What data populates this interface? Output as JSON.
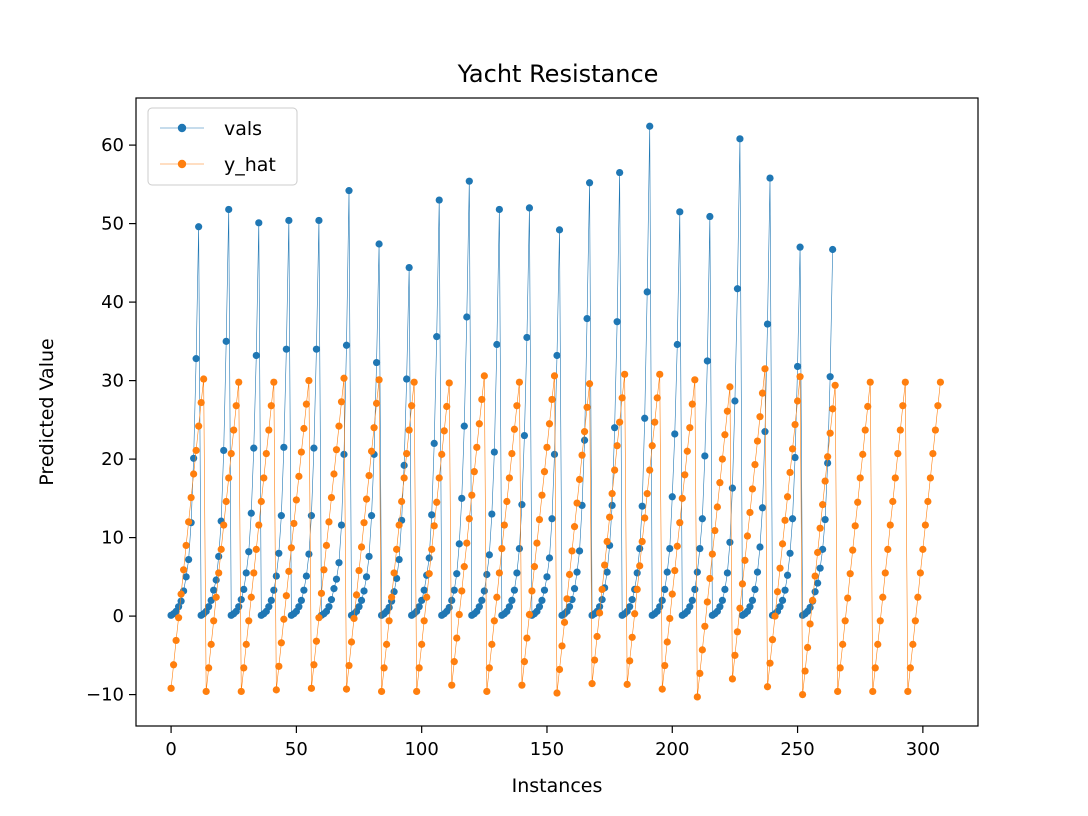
{
  "chart_data": {
    "type": "line",
    "title": "Yacht Resistance",
    "xlabel": "Instances",
    "ylabel": "Predicted Value",
    "xlim": [
      -14,
      322
    ],
    "ylim": [
      -14,
      66
    ],
    "xticks": [
      0,
      50,
      100,
      150,
      200,
      250,
      300
    ],
    "yticks": [
      -10,
      0,
      10,
      20,
      30,
      40,
      50,
      60
    ],
    "grid": false,
    "legend": "top-left",
    "x_start": 0,
    "x_step": 1,
    "series": [
      {
        "name": "vals",
        "color": "#1f77b4",
        "marker": "circle",
        "values": [
          0.1,
          0.3,
          0.6,
          1.2,
          1.9,
          3.2,
          5.0,
          7.2,
          11.9,
          20.1,
          32.8,
          49.6,
          0.1,
          0.3,
          0.6,
          1.2,
          2.0,
          3.3,
          4.6,
          7.6,
          12.1,
          21.1,
          35.0,
          51.8,
          0.1,
          0.3,
          0.6,
          1.2,
          2.1,
          3.4,
          5.5,
          8.2,
          13.1,
          21.4,
          33.2,
          50.1,
          0.1,
          0.3,
          0.6,
          1.2,
          2.0,
          3.3,
          5.1,
          8.0,
          12.8,
          21.5,
          34.0,
          50.4,
          0.1,
          0.3,
          0.6,
          1.2,
          2.0,
          3.3,
          5.1,
          7.9,
          12.8,
          21.4,
          34.0,
          50.4,
          0.1,
          0.3,
          0.6,
          1.2,
          2.1,
          3.5,
          4.7,
          6.8,
          11.6,
          20.6,
          34.5,
          54.2,
          0.1,
          0.3,
          0.6,
          1.2,
          2.0,
          3.2,
          5.0,
          7.6,
          12.8,
          20.6,
          32.3,
          47.4,
          0.1,
          0.3,
          0.6,
          1.1,
          1.9,
          3.1,
          4.8,
          7.2,
          12.2,
          19.2,
          30.2,
          44.4,
          0.1,
          0.3,
          0.6,
          1.2,
          2.0,
          3.3,
          5.2,
          7.4,
          12.9,
          22.0,
          35.6,
          53.0,
          0.1,
          0.3,
          0.6,
          1.1,
          2.0,
          3.3,
          5.4,
          9.2,
          15.0,
          24.2,
          38.1,
          55.4,
          0.1,
          0.3,
          0.6,
          1.2,
          2.0,
          3.2,
          5.3,
          7.8,
          13.0,
          20.9,
          34.6,
          51.8,
          0.1,
          0.3,
          0.6,
          1.2,
          2.0,
          3.3,
          5.5,
          8.6,
          14.2,
          23.0,
          35.5,
          52.0,
          0.1,
          0.3,
          0.6,
          1.2,
          2.0,
          3.3,
          5.0,
          7.4,
          12.4,
          20.6,
          33.2,
          49.2,
          0.1,
          0.3,
          0.6,
          1.2,
          2.1,
          3.5,
          5.6,
          8.3,
          14.1,
          22.4,
          37.9,
          55.2,
          0.1,
          0.3,
          0.6,
          1.2,
          2.1,
          3.6,
          5.6,
          9.0,
          14.1,
          24.0,
          37.5,
          56.5,
          0.1,
          0.3,
          0.6,
          1.2,
          2.1,
          3.4,
          5.5,
          8.6,
          14.0,
          25.2,
          41.3,
          62.4,
          0.1,
          0.3,
          0.6,
          1.2,
          2.0,
          3.4,
          5.6,
          8.6,
          15.2,
          23.2,
          34.6,
          51.5,
          0.1,
          0.3,
          0.6,
          1.2,
          2.0,
          3.4,
          5.6,
          8.6,
          12.4,
          20.4,
          32.5,
          50.9,
          0.1,
          0.3,
          0.6,
          1.2,
          2.0,
          3.4,
          5.5,
          9.4,
          16.3,
          27.4,
          41.7,
          60.8,
          0.1,
          0.3,
          0.6,
          1.2,
          2.0,
          3.4,
          5.6,
          8.8,
          13.8,
          23.5,
          37.2,
          55.8,
          0.1,
          0.3,
          0.6,
          1.2,
          2.0,
          3.3,
          5.2,
          8.0,
          12.4,
          20.2,
          31.8,
          47.0,
          0.1,
          0.3,
          0.6,
          1.1,
          1.9,
          3.1,
          4.2,
          6.1,
          8.5,
          12.3,
          19.5,
          30.5,
          46.7
        ]
      },
      {
        "name": "y_hat",
        "color": "#ff7f0e",
        "marker": "circle",
        "values": [
          -9.2,
          -6.2,
          -3.1,
          -0.2,
          2.8,
          5.9,
          9.0,
          12.0,
          15.1,
          18.1,
          21.1,
          24.2,
          27.2,
          30.2,
          -9.6,
          -6.6,
          -3.6,
          -0.6,
          2.4,
          5.5,
          8.5,
          11.6,
          14.6,
          17.6,
          20.7,
          23.7,
          26.8,
          29.8,
          -9.6,
          -6.6,
          -3.6,
          -0.6,
          2.4,
          5.5,
          8.5,
          11.6,
          14.6,
          17.6,
          20.7,
          23.7,
          26.8,
          29.8,
          -9.4,
          -6.4,
          -3.4,
          -0.4,
          2.6,
          5.7,
          8.7,
          11.8,
          14.8,
          17.8,
          20.9,
          23.9,
          27.0,
          30.0,
          -9.2,
          -6.2,
          -3.2,
          -0.2,
          2.9,
          5.9,
          9.0,
          12.0,
          15.1,
          18.1,
          21.2,
          24.2,
          27.3,
          30.3,
          -9.3,
          -6.3,
          -3.3,
          -0.3,
          2.7,
          5.8,
          8.8,
          11.9,
          14.9,
          17.9,
          21.0,
          24.0,
          27.1,
          30.1,
          -9.6,
          -6.6,
          -3.6,
          -0.6,
          2.4,
          5.5,
          8.5,
          11.6,
          14.6,
          17.6,
          20.7,
          23.7,
          26.8,
          29.8,
          -9.6,
          -6.6,
          -3.6,
          -0.6,
          2.4,
          5.4,
          8.5,
          11.5,
          14.5,
          17.6,
          20.6,
          23.6,
          26.7,
          29.7,
          -8.8,
          -5.8,
          -2.8,
          0.2,
          3.2,
          6.3,
          9.3,
          12.4,
          15.4,
          18.4,
          21.5,
          24.5,
          27.6,
          30.6,
          -9.6,
          -6.6,
          -3.6,
          -0.6,
          2.4,
          5.5,
          8.6,
          11.6,
          14.6,
          17.6,
          20.7,
          23.8,
          26.8,
          29.8,
          -8.8,
          -5.8,
          -2.8,
          0.2,
          3.2,
          6.3,
          9.3,
          12.3,
          15.4,
          18.4,
          21.5,
          24.5,
          27.6,
          30.6,
          -9.8,
          -6.8,
          -3.8,
          -0.8,
          2.2,
          5.3,
          8.3,
          11.4,
          14.4,
          17.4,
          20.5,
          23.5,
          26.6,
          29.6,
          -8.6,
          -5.6,
          -2.6,
          0.4,
          3.4,
          6.5,
          9.5,
          12.6,
          15.6,
          18.6,
          21.7,
          24.7,
          27.8,
          30.8,
          -8.7,
          -5.7,
          -2.7,
          0.3,
          3.4,
          6.4,
          9.5,
          12.5,
          15.6,
          18.6,
          21.7,
          24.7,
          27.8,
          30.8,
          -9.3,
          -6.3,
          -3.3,
          -0.3,
          2.8,
          5.8,
          8.9,
          11.9,
          15.0,
          18.0,
          21.0,
          24.0,
          27.0,
          30.1,
          -10.3,
          -7.3,
          -4.3,
          -1.3,
          1.8,
          4.8,
          7.9,
          10.9,
          13.9,
          17.0,
          20.0,
          23.1,
          26.1,
          29.2,
          -8.0,
          -5.0,
          -2.0,
          1.0,
          4.1,
          7.1,
          10.2,
          13.2,
          16.2,
          19.3,
          22.3,
          25.4,
          28.4,
          31.5,
          -9.0,
          -6.0,
          -3.0,
          0.0,
          3.1,
          6.1,
          9.2,
          12.2,
          15.2,
          18.3,
          21.3,
          24.4,
          27.4,
          30.5,
          -10.0,
          -7.0,
          -4.0,
          -1.0,
          2.0,
          5.1,
          8.1,
          11.2,
          14.2,
          17.2,
          20.3,
          23.3,
          26.4,
          29.4,
          -9.6,
          -6.6,
          -3.6,
          -0.6,
          2.3,
          5.4,
          8.4,
          11.5,
          14.5,
          17.6,
          20.6,
          23.7,
          26.7,
          29.8,
          -9.6,
          -6.6,
          -3.6,
          -0.6,
          2.4,
          5.5,
          8.5,
          11.6,
          14.6,
          17.6,
          20.7,
          23.7,
          26.8,
          29.8,
          -9.6,
          -6.6,
          -3.6,
          -0.6,
          2.4,
          5.5,
          8.5,
          11.6,
          14.6,
          17.6,
          20.7,
          23.7,
          26.8,
          29.8
        ]
      }
    ]
  }
}
